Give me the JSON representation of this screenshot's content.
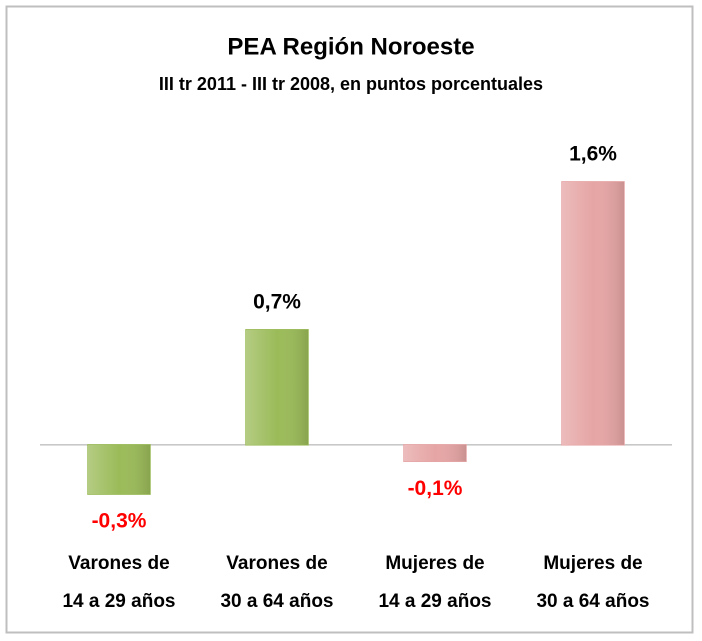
{
  "chart_data": {
    "type": "bar",
    "title": "PEA Región Noroeste",
    "subtitle": "III tr 2011 - III tr 2008, en puntos porcentuales",
    "categories": [
      "Varones de\n14 a 29 años",
      "Varones de\n30 a 64 años",
      "Mujeres de\n14 a 29 años",
      "Mujeres de\n30 a 64 años"
    ],
    "values": [
      -0.3,
      0.7,
      -0.1,
      1.6
    ],
    "value_labels": [
      "-0,3%",
      "0,7%",
      "-0,1%",
      "1,6%"
    ],
    "colors": [
      "#9bbb59",
      "#9bbb59",
      "#e6a5a5",
      "#e6a5a5"
    ],
    "value_label_colors": [
      "#ff0000",
      "#000000",
      "#ff0000",
      "#000000"
    ],
    "ylim": [
      -0.5,
      1.8
    ]
  }
}
